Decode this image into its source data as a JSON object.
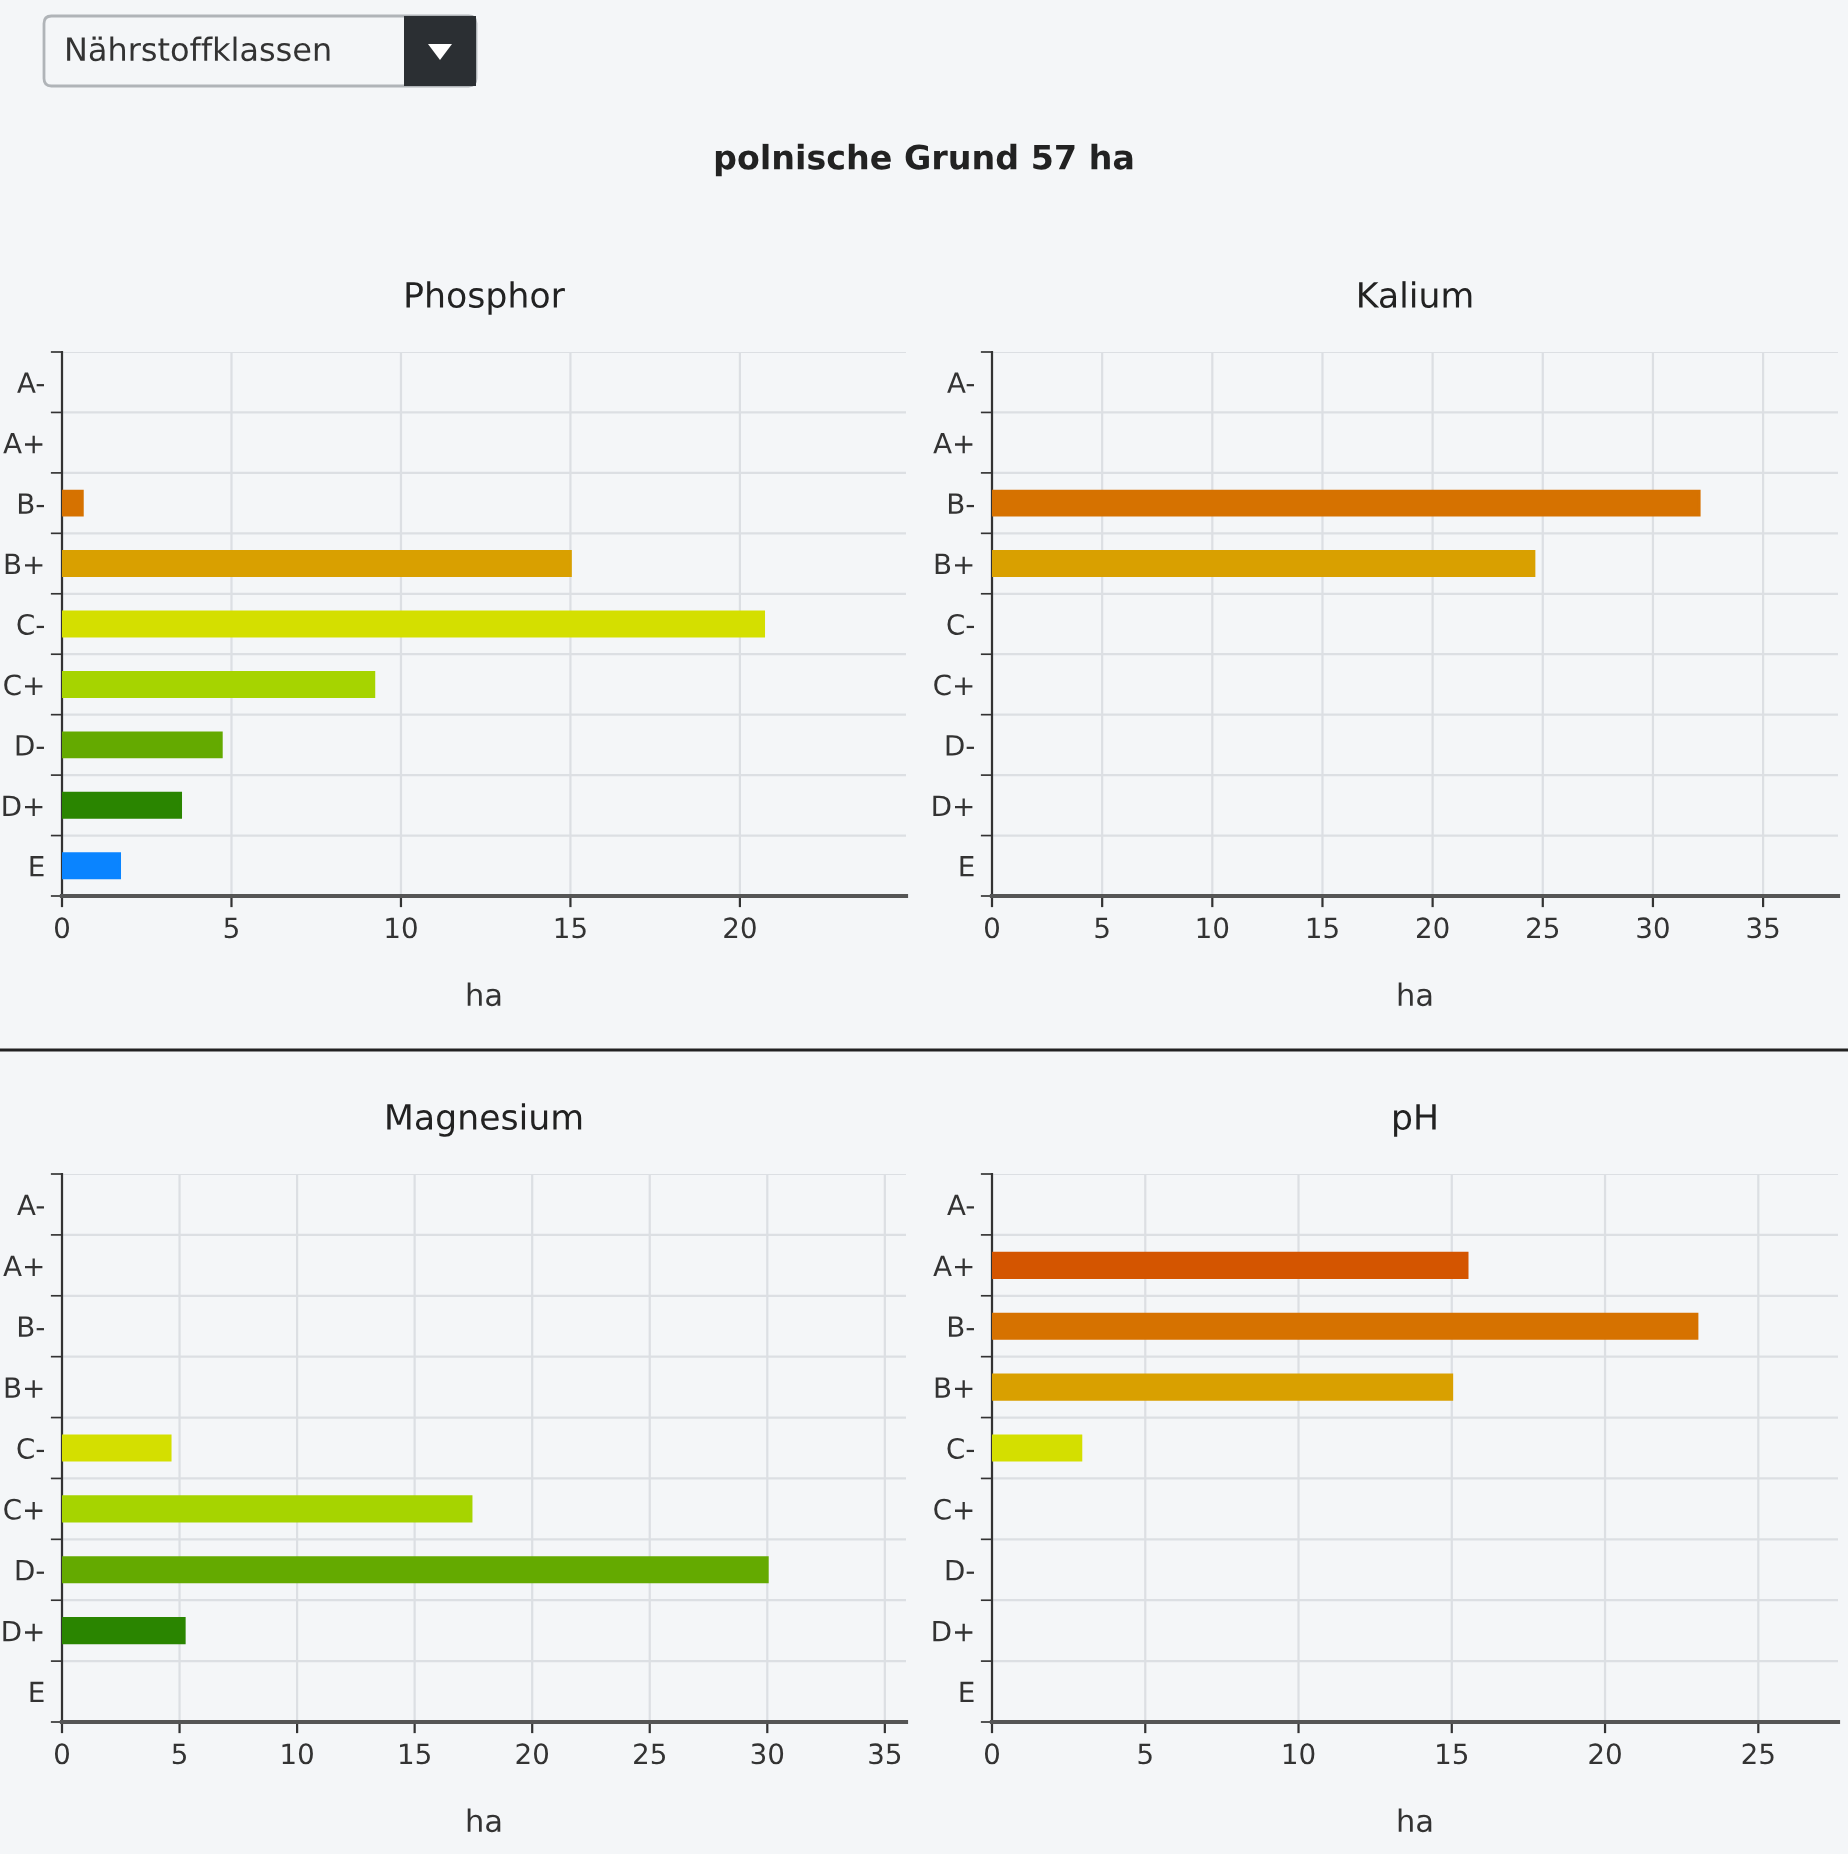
{
  "chart_data": [
    {
      "type": "other",
      "title": "polnische Grund 57 ha",
      "annotations": [
        "Nährstoffklassen"
      ]
    },
    {
      "type": "bar",
      "orientation": "horizontal",
      "title": "Phosphor",
      "xlabel": "ha",
      "categories": [
        "A-",
        "A+",
        "B-",
        "B+",
        "C-",
        "C+",
        "D-",
        "D+",
        "E"
      ],
      "values": [
        null,
        null,
        0.6,
        15.0,
        20.7,
        9.2,
        4.7,
        3.5,
        1.7
      ],
      "colors": [
        "#d45500",
        "#d45500",
        "#d67200",
        "#d9a000",
        "#d4df00",
        "#a6d400",
        "#64aa00",
        "#2a8500",
        "#0a84ff"
      ],
      "xlim": [
        0,
        24.9
      ],
      "xticks": [
        0,
        5,
        10,
        15,
        20
      ],
      "grid": true
    },
    {
      "type": "bar",
      "orientation": "horizontal",
      "title": "Kalium",
      "xlabel": "ha",
      "categories": [
        "A-",
        "A+",
        "B-",
        "B+",
        "C-",
        "C+",
        "D-",
        "D+",
        "E"
      ],
      "values": [
        null,
        null,
        32.1,
        24.6,
        null,
        null,
        null,
        null,
        null
      ],
      "colors": [
        "#d45500",
        "#d45500",
        "#d67200",
        "#d9a000",
        "#d4df00",
        "#a6d400",
        "#64aa00",
        "#2a8500",
        "#0a84ff"
      ],
      "xlim": [
        0,
        38.4
      ],
      "xticks": [
        0,
        5,
        10,
        15,
        20,
        25,
        30,
        35
      ],
      "grid": true
    },
    {
      "type": "bar",
      "orientation": "horizontal",
      "title": "Magnesium",
      "xlabel": "ha",
      "categories": [
        "A-",
        "A+",
        "B-",
        "B+",
        "C-",
        "C+",
        "D-",
        "D+",
        "E"
      ],
      "values": [
        null,
        null,
        null,
        null,
        4.6,
        17.4,
        30.0,
        5.2,
        null
      ],
      "colors": [
        "#d45500",
        "#d45500",
        "#d67200",
        "#d9a000",
        "#d4df00",
        "#a6d400",
        "#64aa00",
        "#2a8500",
        "#0a84ff"
      ],
      "xlim": [
        0,
        35.9
      ],
      "xticks": [
        0,
        5,
        10,
        15,
        20,
        25,
        30,
        35
      ],
      "grid": true
    },
    {
      "type": "bar",
      "orientation": "horizontal",
      "title": "pH",
      "xlabel": "ha",
      "categories": [
        "A-",
        "A+",
        "B-",
        "B+",
        "C-",
        "C+",
        "D-",
        "D+",
        "E"
      ],
      "values": [
        null,
        15.5,
        23.0,
        15.0,
        2.9,
        null,
        null,
        null,
        null
      ],
      "colors": [
        "#d45500",
        "#d45500",
        "#d67200",
        "#d9a000",
        "#d4df00",
        "#a6d400",
        "#64aa00",
        "#2a8500",
        "#0a84ff"
      ],
      "xlim": [
        0,
        27.6
      ],
      "xticks": [
        0,
        5,
        10,
        15,
        20,
        25
      ],
      "grid": true
    }
  ]
}
